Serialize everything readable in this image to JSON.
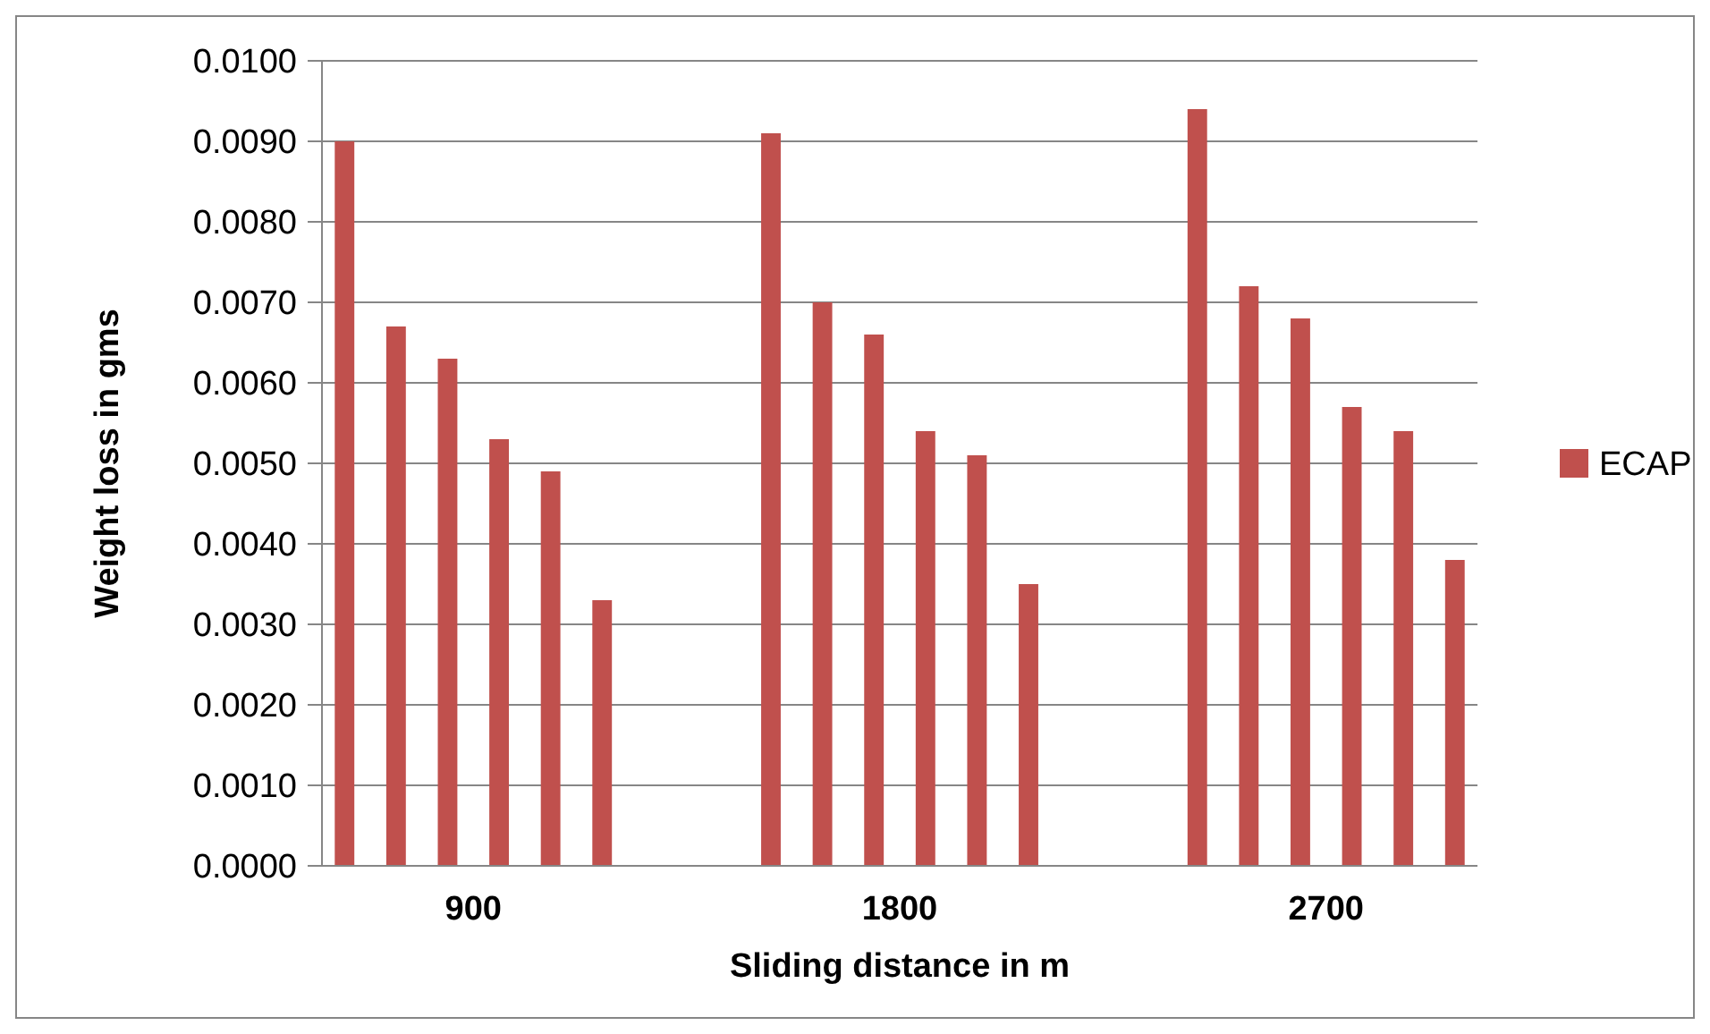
{
  "chart_data": {
    "type": "bar",
    "xlabel": "Sliding distance in m",
    "ylabel": "Weight loss in gms",
    "categories": [
      "900",
      "1800",
      "2700"
    ],
    "series": [
      {
        "name": "ECAP",
        "color": "#c0504d",
        "values": [
          0.009,
          0.0091,
          0.0094
        ]
      },
      {
        "color": "#c0504d",
        "values": [
          0.0067,
          0.007,
          0.0072
        ]
      },
      {
        "color": "#c0504d",
        "values": [
          0.0063,
          0.0066,
          0.0068
        ]
      },
      {
        "color": "#c0504d",
        "values": [
          0.0053,
          0.0054,
          0.0057
        ]
      },
      {
        "color": "#c0504d",
        "values": [
          0.0049,
          0.0051,
          0.0054
        ]
      },
      {
        "color": "#c0504d",
        "values": [
          0.0033,
          0.0035,
          0.0038
        ]
      }
    ],
    "ylim": [
      0,
      0.01
    ],
    "yticks": [
      {
        "value": 0,
        "label": "0.0000"
      },
      {
        "value": 0.001,
        "label": "0.0010"
      },
      {
        "value": 0.002,
        "label": "0.0020"
      },
      {
        "value": 0.003,
        "label": "0.0030"
      },
      {
        "value": 0.004,
        "label": "0.0040"
      },
      {
        "value": 0.005,
        "label": "0.0050"
      },
      {
        "value": 0.006,
        "label": "0.0060"
      },
      {
        "value": 0.007,
        "label": "0.0070"
      },
      {
        "value": 0.008,
        "label": "0.0080"
      },
      {
        "value": 0.009,
        "label": "0.0090"
      },
      {
        "value": 0.01,
        "label": "0.0100"
      }
    ],
    "grid": "y",
    "legend": "right"
  }
}
